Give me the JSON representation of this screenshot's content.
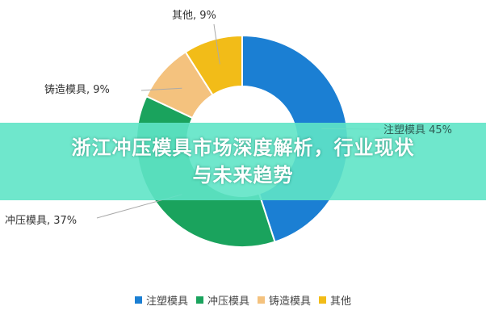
{
  "chart_data": {
    "type": "pie",
    "donut": true,
    "categories": [
      "注塑模具",
      "冲压模具",
      "铸造模具",
      "其他"
    ],
    "values": [
      45,
      37,
      9,
      9
    ],
    "colors": [
      "#1b7fd3",
      "#1aa35d",
      "#f4c27e",
      "#f2bc18"
    ],
    "data_labels": [
      "注塑模具 45%",
      "冲压模具, 37%",
      "铸造模具, 9%",
      "其他, 9%"
    ],
    "legend": "bottom"
  },
  "banner": {
    "line1": "浙江冲压模具市场深度解析，行业现状",
    "line2": "与未来趋势"
  }
}
